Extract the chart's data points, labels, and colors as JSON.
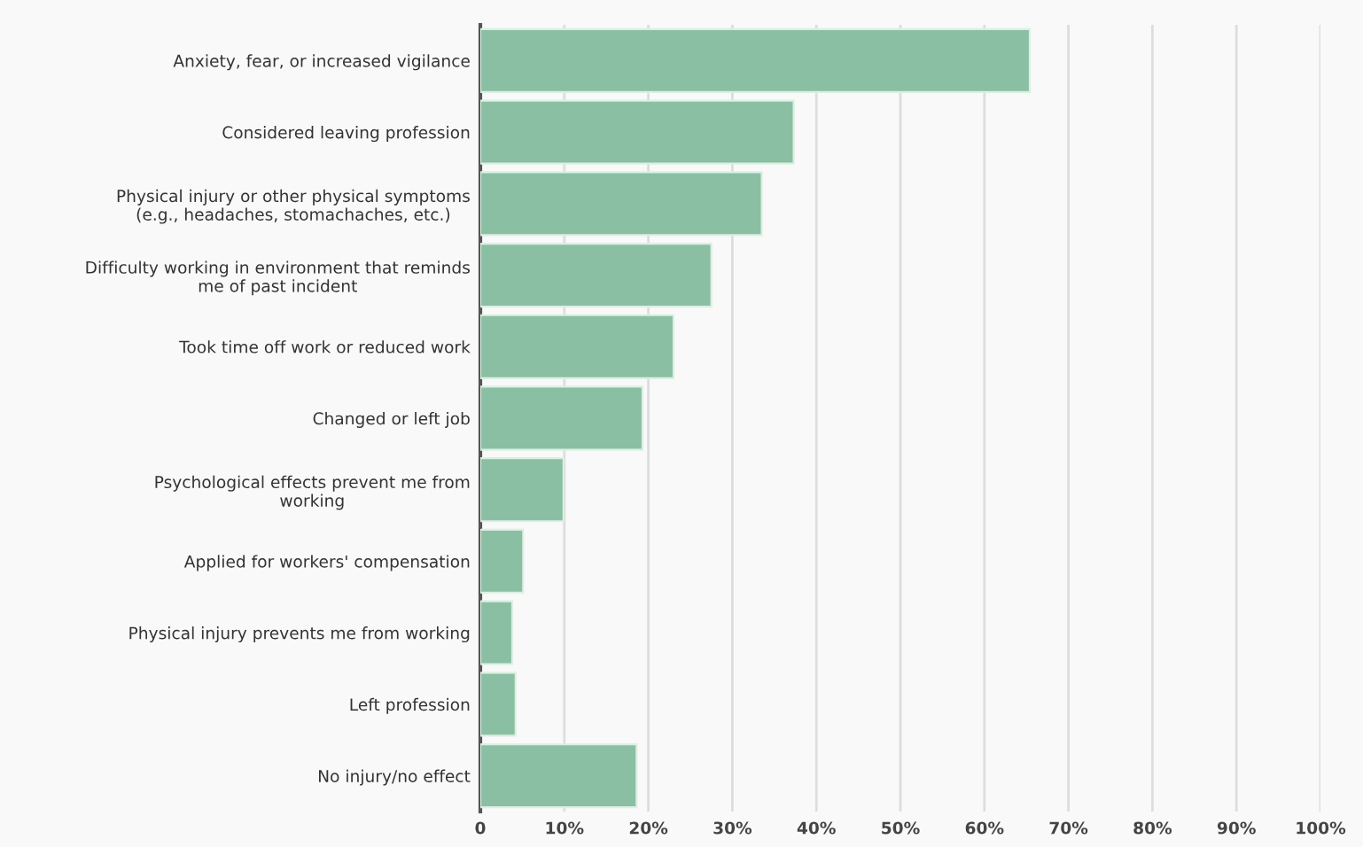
{
  "chart_data": {
    "type": "bar",
    "orientation": "horizontal",
    "categories": [
      "Anxiety, fear, or increased vigilance",
      "Considered leaving profession",
      "Physical injury or other physical symptoms\n(e.g., headaches, stomachaches, etc.)",
      "Difficulty working in environment that reminds\nme of past incident",
      "Took time off work or reduced work",
      "Changed or left job",
      "Psychological effects prevent me from\nworking",
      "Applied for workers' compensation",
      "Physical injury prevents me from working",
      "Left profession",
      "No injury/no effect"
    ],
    "values": [
      65.4,
      37.3,
      33.5,
      27.5,
      23.0,
      19.3,
      9.9,
      5.1,
      3.8,
      4.2,
      18.6
    ],
    "color": "#8abfa3",
    "xlim": [
      0,
      100
    ],
    "xticks": [
      {
        "value": 0,
        "label": "0"
      },
      {
        "value": 10,
        "label": "10%"
      },
      {
        "value": 20,
        "label": "20%"
      },
      {
        "value": 30,
        "label": "30%"
      },
      {
        "value": 40,
        "label": "40%"
      },
      {
        "value": 50,
        "label": "50%"
      },
      {
        "value": 60,
        "label": "60%"
      },
      {
        "value": 70,
        "label": "70%"
      },
      {
        "value": 80,
        "label": "80%"
      },
      {
        "value": 90,
        "label": "90%"
      },
      {
        "value": 100,
        "label": "100%"
      }
    ],
    "grid": "x",
    "legend": false
  }
}
